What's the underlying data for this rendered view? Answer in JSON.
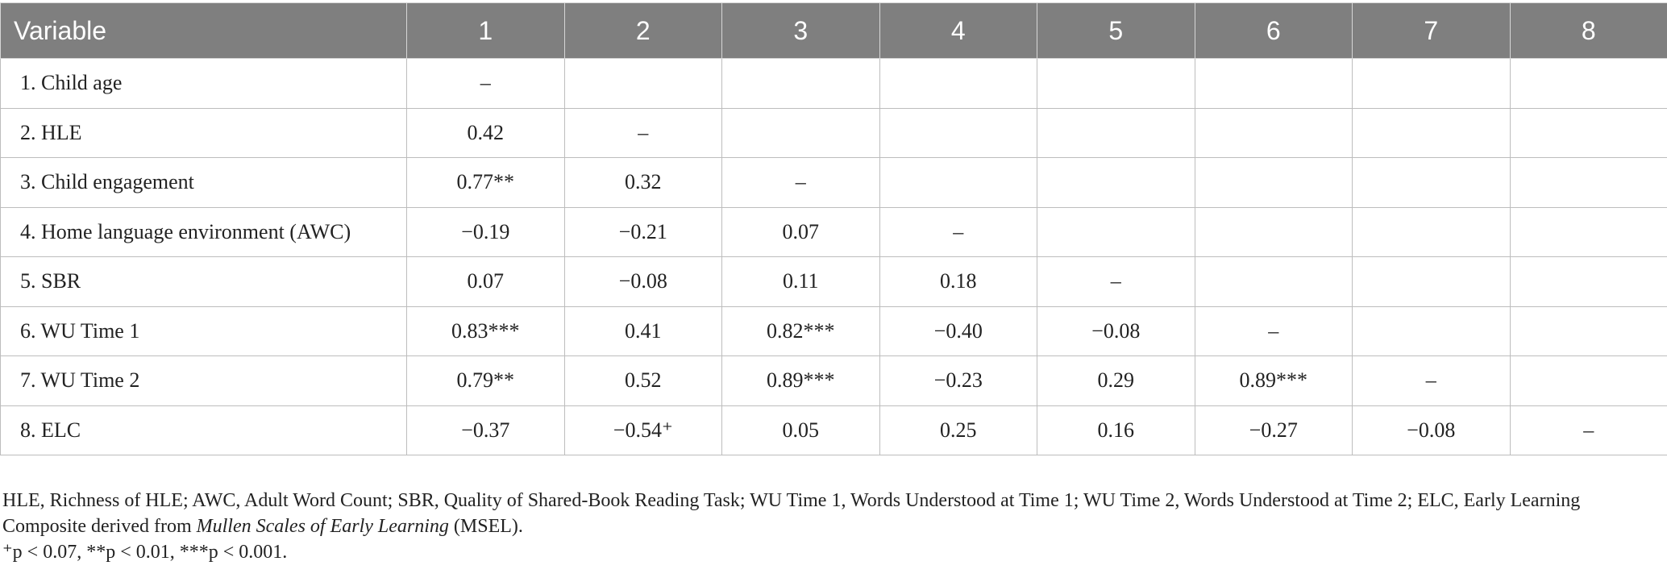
{
  "table": {
    "headers": [
      "Variable",
      "1",
      "2",
      "3",
      "4",
      "5",
      "6",
      "7",
      "8"
    ],
    "rows": [
      [
        "1. Child age",
        "–",
        "",
        "",
        "",
        "",
        "",
        "",
        ""
      ],
      [
        "2. HLE",
        "0.42",
        "–",
        "",
        "",
        "",
        "",
        "",
        ""
      ],
      [
        "3. Child engagement",
        "0.77**",
        "0.32",
        "–",
        "",
        "",
        "",
        "",
        ""
      ],
      [
        "4. Home language environment (AWC)",
        "−0.19",
        "−0.21",
        "0.07",
        "–",
        "",
        "",
        "",
        ""
      ],
      [
        "5. SBR",
        "0.07",
        "−0.08",
        "0.11",
        "0.18",
        "–",
        "",
        "",
        ""
      ],
      [
        "6. WU Time 1",
        "0.83***",
        "0.41",
        "0.82***",
        "−0.40",
        "−0.08",
        "–",
        "",
        ""
      ],
      [
        "7. WU Time 2",
        "0.79**",
        "0.52",
        "0.89***",
        "−0.23",
        "0.29",
        "0.89***",
        "–",
        ""
      ],
      [
        "8. ELC",
        "−0.37",
        "−0.54⁺",
        "0.05",
        "0.25",
        "0.16",
        "−0.27",
        "−0.08",
        "–"
      ]
    ]
  },
  "footnote": {
    "abbrev_part1": "HLE, Richness of HLE; AWC, Adult Word Count; SBR, Quality of Shared-Book Reading Task; WU Time 1, Words Understood at Time 1; WU Time 2, Words Understood at Time 2; ELC, Early Learning Composite derived from ",
    "abbrev_italic": "Mullen Scales of Early Learning",
    "abbrev_part2": " (MSEL).",
    "significance": "⁺p < 0.07, **p < 0.01, ***p < 0.001."
  }
}
